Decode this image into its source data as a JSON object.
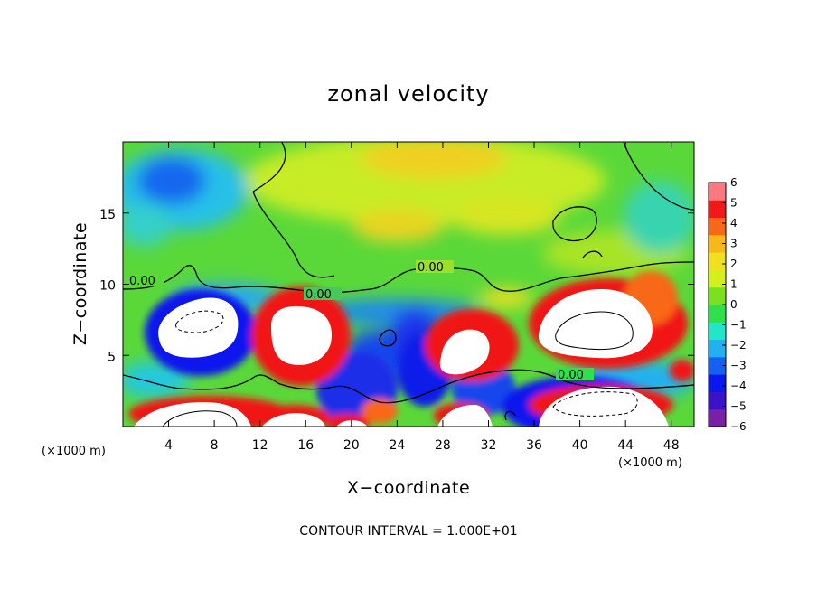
{
  "chart_data": {
    "type": "heatmap",
    "title": "zonal velocity",
    "xlabel": "X−coordinate",
    "ylabel": "Z−coordinate",
    "x_units_left": "(×1000 m)",
    "x_units_right": "(×1000 m)",
    "xlim": [
      0,
      50
    ],
    "ylim": [
      0,
      20
    ],
    "x_ticks": [
      4,
      8,
      12,
      16,
      20,
      24,
      28,
      32,
      36,
      40,
      44,
      48
    ],
    "y_ticks": [
      5,
      10,
      15
    ],
    "colorbar": {
      "min": -6,
      "max": 6,
      "ticks": [
        "6",
        "5",
        "4",
        "3",
        "2",
        "1",
        "0",
        "−1",
        "−2",
        "−3",
        "−4",
        "−5",
        "−6"
      ],
      "colors": [
        "#7a1fa8",
        "#3a12c8",
        "#0a18ee",
        "#1460f0",
        "#22b0f0",
        "#22e6c8",
        "#2ee04a",
        "#7ae020",
        "#d4f01c",
        "#f0e020",
        "#f8b818",
        "#f86818",
        "#f01818",
        "#f87a80"
      ]
    },
    "contour_labels": [
      "0.00",
      "0.00",
      "0.00",
      "0.00"
    ],
    "contour_interval": "CONTOUR INTERVAL = 1.000E+01"
  }
}
